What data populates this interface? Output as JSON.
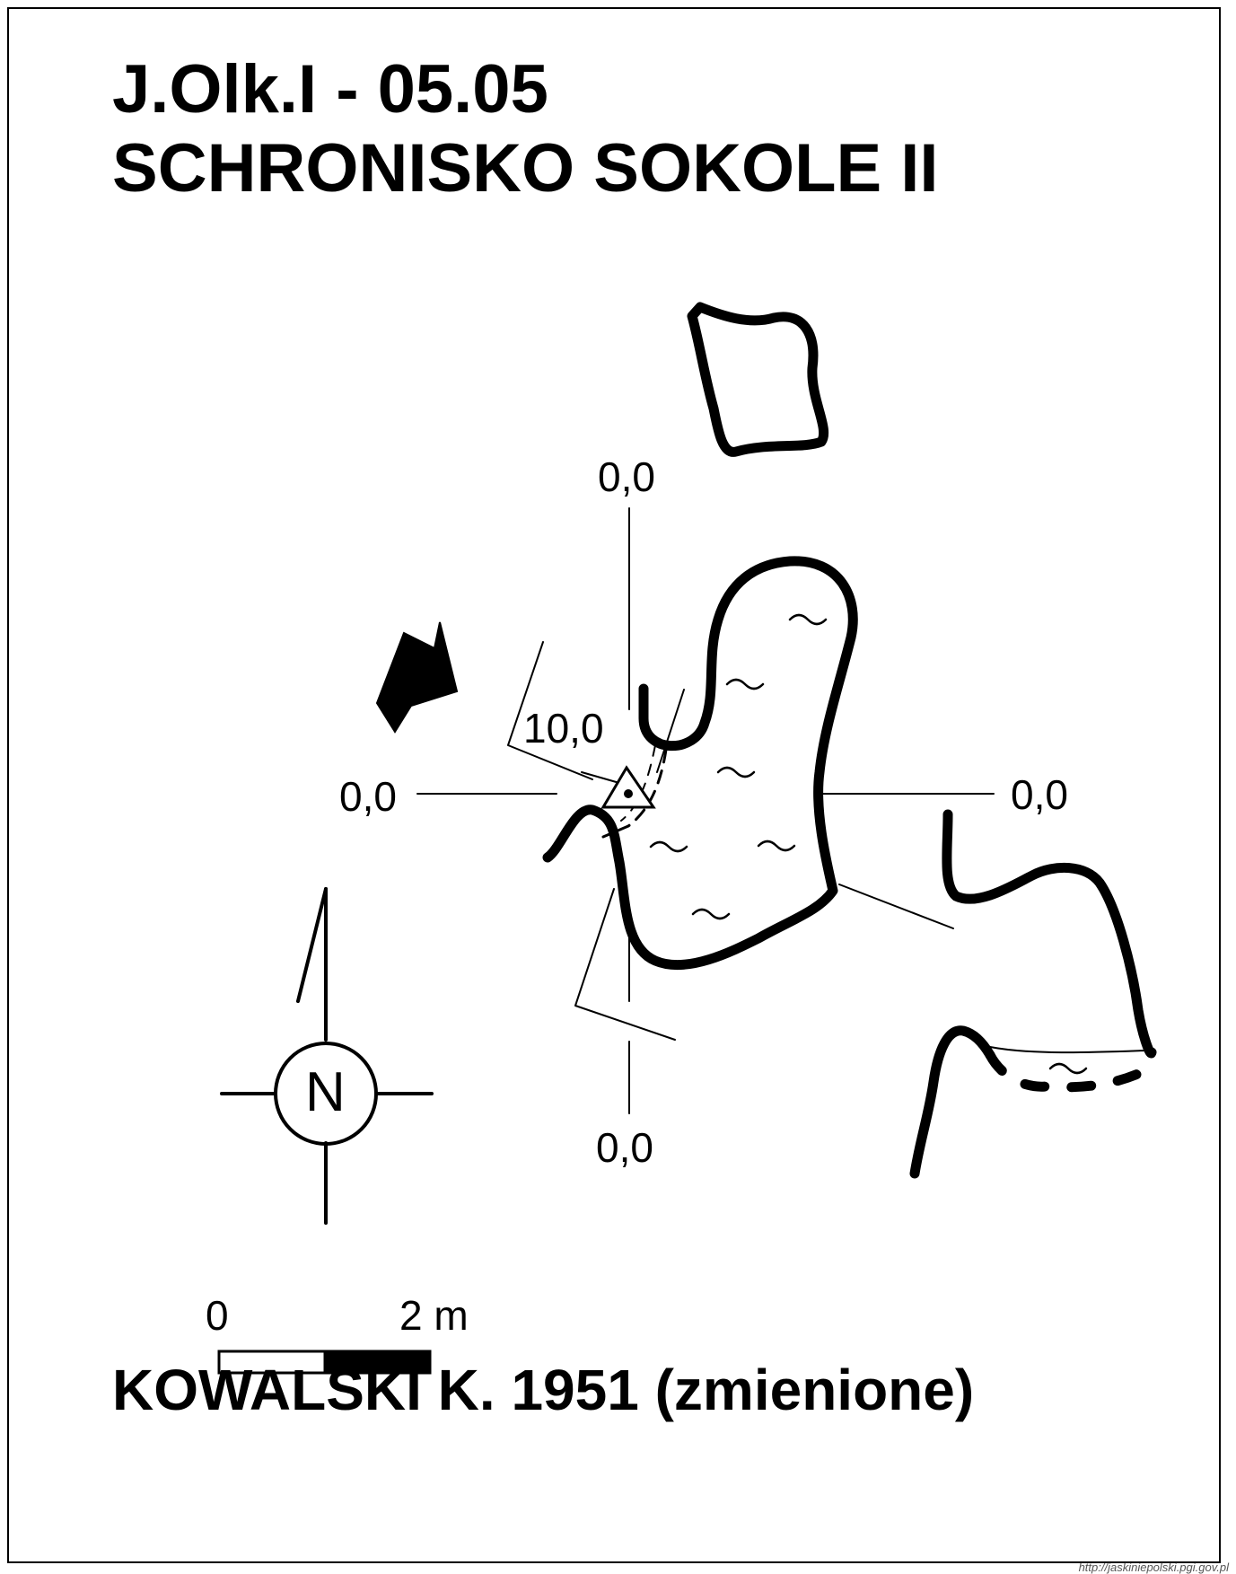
{
  "title": {
    "line1": "J.Olk.I - 05.05",
    "line2": "SCHRONISKO SOKOLE II"
  },
  "profile_labels": {
    "top": "0,0",
    "left": "0,0",
    "right": "0,0",
    "bottom": "0,0",
    "center_height": "10,0"
  },
  "compass": {
    "letter": "N"
  },
  "scale_bar": {
    "start_label": "0",
    "end_label": "2 m",
    "colors": {
      "first_segment": "#ffffff",
      "second_segment": "#000000"
    }
  },
  "author": "KOWALSKI K.  1951 (zmienione)",
  "watermark": "http://jaskiniepolski.pgi.gov.pl",
  "colors": {
    "ink": "#000000",
    "paper": "#ffffff"
  },
  "icons": [
    "entrance-arrow-icon",
    "survey-station-icon",
    "water-sign-icon",
    "north-compass-icon"
  ]
}
